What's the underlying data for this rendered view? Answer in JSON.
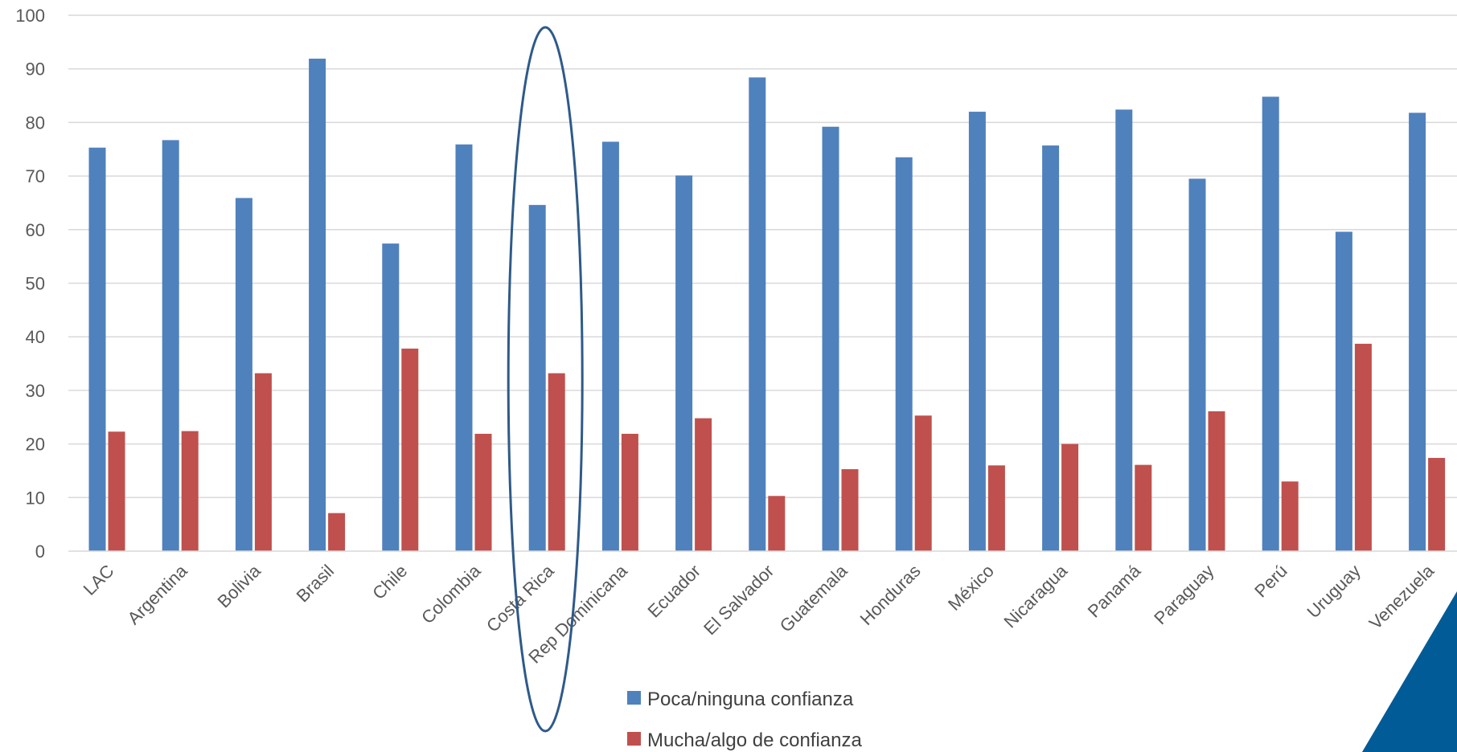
{
  "chart_data": {
    "type": "bar",
    "categories": [
      "LAC",
      "Argentina",
      "Bolivia",
      "Brasil",
      "Chile",
      "Colombia",
      "Costa Rica",
      "Rep Dominicana",
      "Ecuador",
      "El Salvador",
      "Guatemala",
      "Honduras",
      "México",
      "Nicaragua",
      "Panamá",
      "Paraguay",
      "Perú",
      "Uruguay",
      "Venezuela"
    ],
    "series": [
      {
        "name": "Poca/ninguna confianza",
        "color": "#4f81bd",
        "values": [
          75.3,
          76.7,
          65.9,
          91.9,
          57.4,
          75.9,
          64.6,
          76.4,
          70.1,
          88.4,
          79.2,
          73.5,
          82.0,
          75.7,
          82.4,
          69.5,
          84.8,
          59.6,
          81.8
        ]
      },
      {
        "name": "Mucha/algo de confianza",
        "color": "#c0504d",
        "values": [
          22.3,
          22.4,
          33.2,
          7.1,
          37.8,
          21.9,
          33.2,
          21.9,
          24.8,
          10.3,
          15.3,
          25.3,
          16.0,
          20.0,
          16.1,
          26.1,
          13.0,
          38.7,
          17.4
        ]
      }
    ],
    "ylim": [
      0,
      100
    ],
    "yticks": [
      0,
      10,
      20,
      30,
      40,
      50,
      60,
      70,
      80,
      90,
      100
    ],
    "grid": true,
    "legend_position": "bottom",
    "highlighted_category": "Costa Rica",
    "highlight_color": "#2e5a8a",
    "corner_accent_color": "#005b96"
  }
}
